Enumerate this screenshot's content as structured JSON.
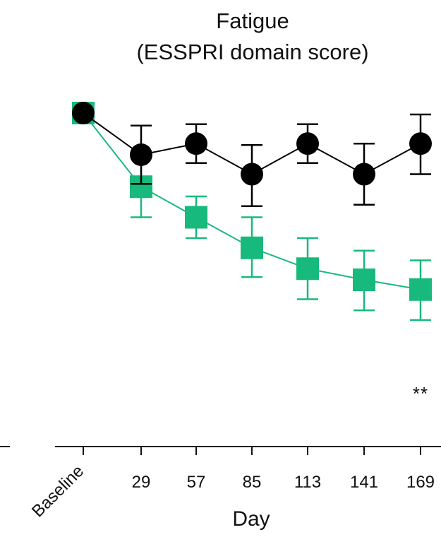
{
  "chart_data": {
    "type": "line",
    "title": "Fatigue",
    "subtitle": "(ESSPRI domain score)",
    "xlabel": "Day",
    "ylabel": "",
    "categories": [
      "Baseline",
      "29",
      "57",
      "85",
      "113",
      "141",
      "169"
    ],
    "ylim": [
      -2.4,
      0.3
    ],
    "grid": false,
    "legend": "none",
    "series": [
      {
        "color": "#000000",
        "marker": "circle",
        "values": [
          0,
          -0.3,
          -0.22,
          -0.44,
          -0.22,
          -0.44,
          -0.22
        ],
        "err_low": [
          0,
          0.21,
          0.14,
          0.23,
          0.14,
          0.22,
          0.22
        ],
        "err_high": [
          0,
          0.21,
          0.14,
          0.21,
          0.14,
          0.22,
          0.21
        ]
      },
      {
        "color": "#18b97c",
        "marker": "square",
        "values": [
          0,
          -0.53,
          -0.75,
          -0.97,
          -1.12,
          -1.2,
          -1.27
        ],
        "err_low": [
          0,
          0.22,
          0.15,
          0.21,
          0.22,
          0.22,
          0.22
        ],
        "err_high": [
          0,
          0.22,
          0.15,
          0.22,
          0.22,
          0.21,
          0.21
        ]
      }
    ],
    "annotations": [
      {
        "text": "**",
        "category": "169"
      }
    ]
  }
}
